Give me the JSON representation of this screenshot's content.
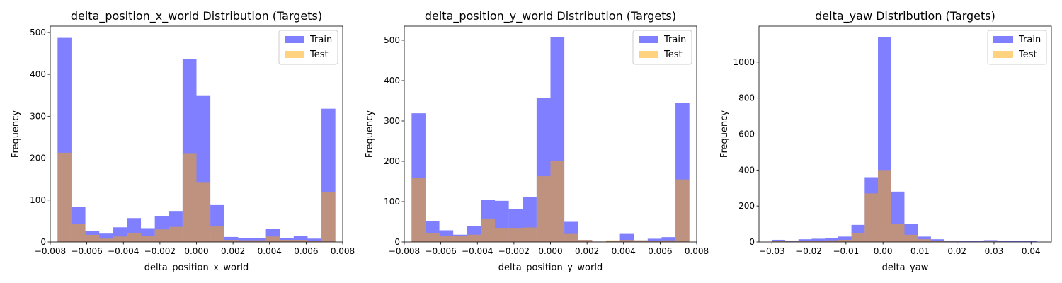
{
  "colors": {
    "train": "#0000ff",
    "test": "#ffa500"
  },
  "legend": {
    "train": "Train",
    "test": "Test"
  },
  "chart_data": [
    {
      "type": "histogram",
      "title": "delta_position_x_world Distribution (Targets)",
      "xlabel": "delta_position_x_world",
      "ylabel": "Frequency",
      "xlim": [
        -0.008,
        0.008
      ],
      "ylim": [
        0,
        515
      ],
      "xticks": [
        -0.008,
        -0.006,
        -0.004,
        -0.002,
        0.0,
        0.002,
        0.004,
        0.006,
        0.008
      ],
      "xtick_labels": [
        "−0.008",
        "−0.006",
        "−0.004",
        "−0.002",
        "0.000",
        "0.002",
        "0.004",
        "0.006",
        "0.008"
      ],
      "yticks": [
        0,
        100,
        200,
        300,
        400,
        500
      ],
      "bins": [
        -0.0076,
        -0.0072,
        -0.0068,
        -0.0064,
        -0.006,
        -0.0056,
        -0.0052,
        -0.0048,
        -0.0044,
        -0.004,
        -0.0036,
        -0.0032,
        -0.0028,
        -0.0024,
        -0.002,
        -0.0016,
        -0.0012,
        -0.0008,
        -0.0004,
        0.0,
        0.0004,
        0.0008,
        0.0012,
        0.0016,
        0.002,
        0.0024,
        0.0028,
        0.0032,
        0.0036,
        0.004,
        0.0044,
        0.0048,
        0.0052,
        0.0056,
        0.006,
        0.0064,
        0.0068,
        0.0072,
        0.0076
      ],
      "series": [
        {
          "name": "Train",
          "bin_edges": [
            -0.0076,
            -0.0072,
            -0.0068,
            -0.0064,
            -0.006,
            -0.0056,
            -0.0052,
            -0.0048,
            -0.0044,
            -0.004,
            -0.0036,
            -0.0032,
            -0.0028,
            -0.0024,
            -0.002,
            -0.0016,
            -0.0012,
            -0.0008,
            -0.0004,
            0.0,
            0.0004,
            0.0008,
            0.0012,
            0.0016,
            0.002,
            0.0024,
            0.0028,
            0.0032,
            0.0036,
            0.004,
            0.0044,
            0.0048,
            0.0052,
            0.0056,
            0.006,
            0.0064,
            0.0068,
            0.0072,
            0.0076
          ],
          "counts": []
        },
        {
          "name": "Test",
          "counts": []
        }
      ],
      "train_edges": [
        -0.0076,
        -0.00684,
        -0.00608,
        -0.00532,
        -0.00456,
        -0.0038,
        -0.00304,
        -0.00228,
        -0.00152,
        -0.00076,
        0.0,
        0.00076,
        0.00152,
        0.00228,
        0.00304,
        0.0038,
        0.00456,
        0.00532,
        0.00608,
        0.00684,
        0.0076
      ],
      "train_counts": [
        487,
        84,
        27,
        20,
        35,
        57,
        33,
        62,
        74,
        437,
        350,
        88,
        12,
        9,
        9,
        32,
        10,
        15,
        8,
        318
      ],
      "test_edges": [
        -0.0076,
        -0.00684,
        -0.00608,
        -0.00532,
        -0.00456,
        -0.0038,
        -0.00304,
        -0.00228,
        -0.00152,
        -0.00076,
        0.0,
        0.00076,
        0.00152,
        0.00228,
        0.00304,
        0.0038,
        0.00456,
        0.00532,
        0.00608,
        0.00684,
        0.0076
      ],
      "test_counts": [
        213,
        43,
        17,
        8,
        13,
        22,
        14,
        30,
        36,
        212,
        143,
        37,
        5,
        4,
        4,
        13,
        5,
        5,
        3,
        120
      ]
    },
    {
      "type": "histogram",
      "title": "delta_position_y_world Distribution (Targets)",
      "xlabel": "delta_position_y_world",
      "ylabel": "Frequency",
      "xlim": [
        -0.008,
        0.008
      ],
      "ylim": [
        0,
        535
      ],
      "xticks": [
        -0.008,
        -0.006,
        -0.004,
        -0.002,
        0.0,
        0.002,
        0.004,
        0.006,
        0.008
      ],
      "xtick_labels": [
        "−0.008",
        "−0.006",
        "−0.004",
        "−0.002",
        "0.000",
        "0.002",
        "0.004",
        "0.006",
        "0.008"
      ],
      "yticks": [
        0,
        100,
        200,
        300,
        400,
        500
      ],
      "train_edges": [
        -0.0076,
        -0.00684,
        -0.00608,
        -0.00532,
        -0.00456,
        -0.0038,
        -0.00304,
        -0.00228,
        -0.00152,
        -0.00076,
        0.0,
        0.00076,
        0.00152,
        0.00228,
        0.00304,
        0.0038,
        0.00456,
        0.00532,
        0.00608,
        0.00684,
        0.0076
      ],
      "train_counts": [
        319,
        52,
        29,
        18,
        39,
        104,
        102,
        81,
        112,
        357,
        508,
        50,
        5,
        1,
        2,
        20,
        4,
        8,
        12,
        345
      ],
      "test_edges": [
        -0.0076,
        -0.00684,
        -0.00608,
        -0.00532,
        -0.00456,
        -0.0038,
        -0.00304,
        -0.00228,
        -0.00152,
        -0.00076,
        0.0,
        0.00076,
        0.00152,
        0.00228,
        0.00304,
        0.0038,
        0.00456,
        0.00532,
        0.00608,
        0.00684,
        0.0076
      ],
      "test_counts": [
        158,
        22,
        14,
        15,
        18,
        58,
        35,
        35,
        36,
        163,
        200,
        20,
        5,
        1,
        4,
        5,
        4,
        2,
        4,
        155
      ]
    },
    {
      "type": "histogram",
      "title": "delta_yaw Distribution (Targets)",
      "xlabel": "delta_yaw",
      "ylabel": "Frequency",
      "xlim": [
        -0.0335,
        0.0455
      ],
      "ylim": [
        0,
        1200
      ],
      "xticks": [
        -0.03,
        -0.02,
        -0.01,
        0.0,
        0.01,
        0.02,
        0.03,
        0.04
      ],
      "xtick_labels": [
        "−0.03",
        "−0.02",
        "−0.01",
        "0.00",
        "0.01",
        "0.02",
        "0.03",
        "0.04"
      ],
      "yticks": [
        0,
        200,
        400,
        600,
        800,
        1000
      ],
      "train_edges": [
        -0.03,
        -0.02642,
        -0.02284,
        -0.01926,
        -0.01568,
        -0.0121,
        -0.00852,
        -0.00494,
        -0.00136,
        0.00222,
        0.0058,
        0.00938,
        0.01296,
        0.01654,
        0.02012,
        0.0237,
        0.02728,
        0.03086,
        0.03444,
        0.03802,
        0.0416
      ],
      "train_counts": [
        12,
        8,
        15,
        18,
        22,
        30,
        95,
        360,
        1140,
        280,
        100,
        30,
        15,
        8,
        6,
        5,
        10,
        7,
        5,
        4
      ],
      "test_edges": [
        -0.03,
        -0.02642,
        -0.02284,
        -0.01926,
        -0.01568,
        -0.0121,
        -0.00852,
        -0.00494,
        -0.00136,
        0.00222,
        0.0058,
        0.00938,
        0.01296,
        0.01654,
        0.02012,
        0.0237,
        0.02728,
        0.03086,
        0.03444,
        0.03802,
        0.0416
      ],
      "test_counts": [
        4,
        3,
        6,
        7,
        9,
        12,
        50,
        270,
        400,
        100,
        40,
        15,
        6,
        3,
        2,
        2,
        3,
        2,
        1,
        1
      ]
    }
  ]
}
